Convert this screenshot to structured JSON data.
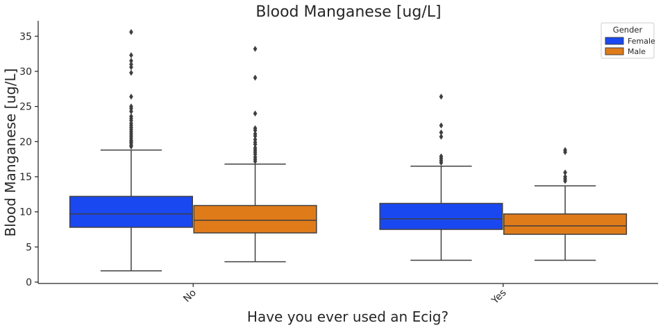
{
  "chart_data": {
    "type": "box",
    "title": "Blood Manganese [ug/L]",
    "xlabel": "Have you ever used an Ecig?",
    "ylabel": "Blood Manganese [ug/L]",
    "categories": [
      "No",
      "Yes"
    ],
    "ylim": [
      -0.2,
      37.2
    ],
    "yticks": [
      0,
      5,
      10,
      15,
      20,
      25,
      30,
      35
    ],
    "grid": false,
    "legend": {
      "title": "Gender",
      "placement": "top-right"
    },
    "series": [
      {
        "name": "Female",
        "color": "#1a48f0",
        "boxes": [
          {
            "category": "No",
            "whisker_low": 1.6,
            "q1": 7.8,
            "median": 9.7,
            "q3": 12.2,
            "whisker_high": 18.8,
            "outliers": [
              35.6,
              32.3,
              31.5,
              31.0,
              30.6,
              29.8,
              26.4,
              25.0,
              24.7,
              24.3,
              23.6,
              23.3,
              23.0,
              22.6,
              22.3,
              22.0,
              21.7,
              21.4,
              21.1,
              20.8,
              20.5,
              20.2,
              20.0,
              19.8,
              19.5,
              19.3
            ]
          },
          {
            "category": "Yes",
            "whisker_low": 3.1,
            "q1": 7.5,
            "median": 9.0,
            "q3": 11.2,
            "whisker_high": 16.5,
            "outliers": [
              26.4,
              22.3,
              21.3,
              20.7,
              17.9,
              17.6,
              17.3,
              17.0
            ]
          }
        ]
      },
      {
        "name": "Male",
        "color": "#e07b1a",
        "boxes": [
          {
            "category": "No",
            "whisker_low": 2.9,
            "q1": 7.0,
            "median": 8.8,
            "q3": 10.9,
            "whisker_high": 16.8,
            "outliers": [
              33.2,
              29.1,
              24.0,
              21.9,
              21.6,
              21.1,
              20.8,
              20.3,
              19.9,
              19.6,
              19.1,
              18.8,
              18.5,
              18.2,
              17.8,
              17.5,
              17.2
            ]
          },
          {
            "category": "Yes",
            "whisker_low": 3.1,
            "q1": 6.8,
            "median": 8.0,
            "q3": 9.7,
            "whisker_high": 13.7,
            "outliers": [
              18.8,
              18.5,
              15.6,
              15.0,
              14.7,
              14.4
            ]
          }
        ]
      }
    ]
  }
}
